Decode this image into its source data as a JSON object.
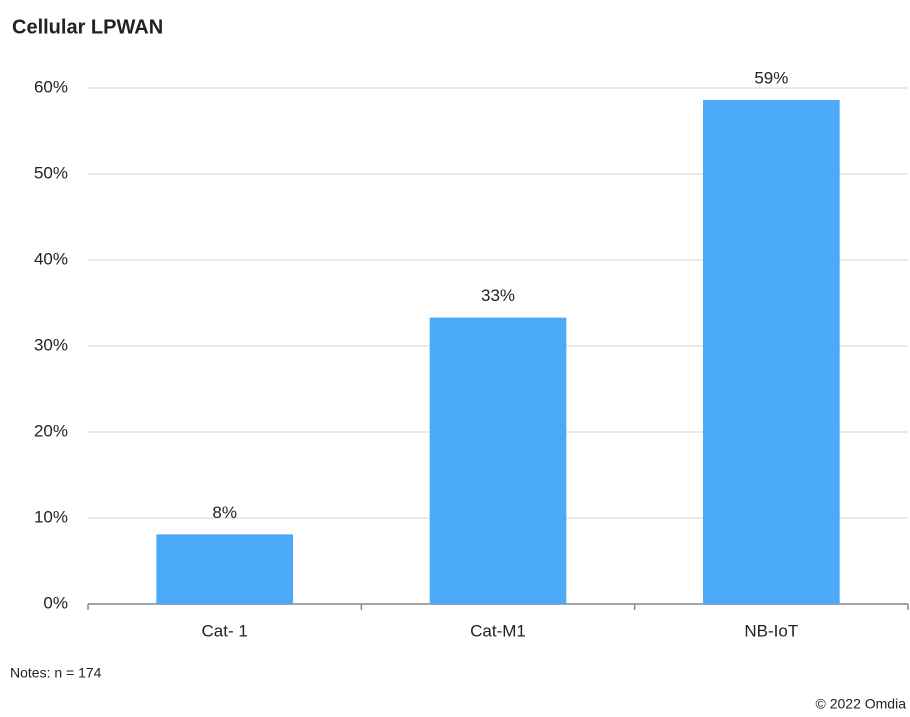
{
  "chart_data": {
    "type": "bar",
    "title": "Cellular LPWAN",
    "categories": [
      "Cat- 1",
      "Cat-M1",
      "NB-IoT"
    ],
    "values": [
      8.1,
      33.3,
      58.6
    ],
    "value_labels": [
      "8%",
      "33%",
      "59%"
    ],
    "color": "#4aaaf7",
    "ylim": [
      0,
      60
    ],
    "yticks": [
      {
        "value": 0,
        "label": "0%"
      },
      {
        "value": 10,
        "label": "10%"
      },
      {
        "value": 20,
        "label": "20%"
      },
      {
        "value": 30,
        "label": "30%"
      },
      {
        "value": 40,
        "label": "40%"
      },
      {
        "value": 50,
        "label": "50%"
      },
      {
        "value": 60,
        "label": "60%"
      }
    ],
    "grid": true,
    "notes": "Notes: n = 174",
    "source": "© 2022 Omdia"
  }
}
